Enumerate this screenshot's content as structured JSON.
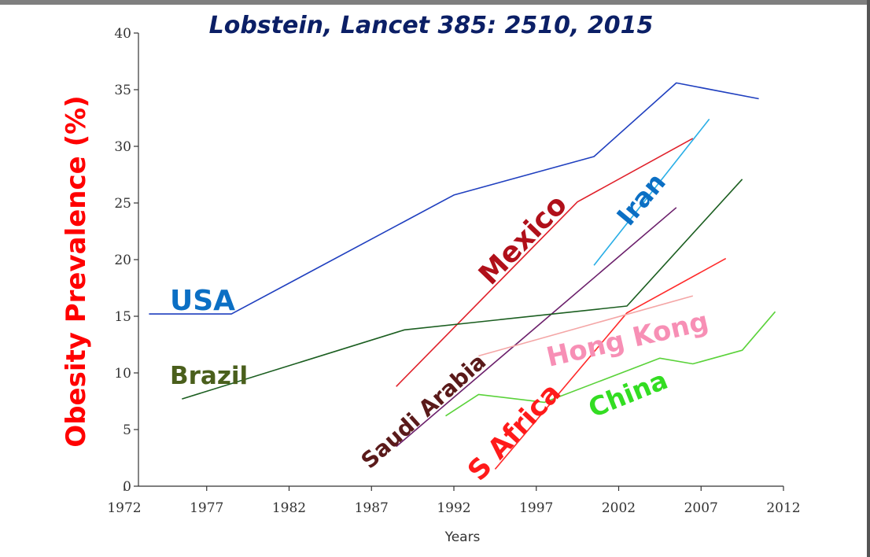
{
  "chart_data": {
    "type": "line",
    "title": "Lobstein, Lancet 385: 2510, 2015",
    "xlabel": "Years",
    "ylabel": "Obesity Prevalence (%)",
    "xlim": [
      1972,
      2012
    ],
    "ylim": [
      0,
      40
    ],
    "x_ticks": [
      1972,
      1977,
      1982,
      1987,
      1992,
      1997,
      2002,
      2007,
      2012
    ],
    "y_ticks": [
      0,
      5,
      10,
      15,
      20,
      25,
      30,
      35,
      40
    ],
    "grid": false,
    "legend": "none (inline labels)",
    "series": [
      {
        "name": "USA",
        "color": "#1f3fbf",
        "label_color": "#0b6fc4",
        "points": [
          [
            1973.5,
            15.2
          ],
          [
            1978.5,
            15.2
          ],
          [
            1992,
            25.7
          ],
          [
            2000.5,
            29.1
          ],
          [
            2005.5,
            35.6
          ],
          [
            2010.5,
            34.2
          ]
        ]
      },
      {
        "name": "Mexico",
        "color": "#e0202a",
        "label_color": "#b0101a",
        "points": [
          [
            1988.5,
            8.8
          ],
          [
            1999.5,
            25.1
          ],
          [
            2006.5,
            30.7
          ]
        ]
      },
      {
        "name": "Iran",
        "color": "#29aee6",
        "label_color": "#0b6fc4",
        "points": [
          [
            2000.5,
            19.5
          ],
          [
            2007.5,
            32.4
          ]
        ]
      },
      {
        "name": "Saudi Arabia",
        "color": "#6b1f6b",
        "label_color": "#5a1a1a",
        "points": [
          [
            1988.5,
            3.5
          ],
          [
            2005.5,
            24.6
          ]
        ]
      },
      {
        "name": "Brazil",
        "color": "#1b5e20",
        "label_color": "#4a5f1c",
        "points": [
          [
            1975.5,
            7.7
          ],
          [
            1989,
            13.8
          ],
          [
            2002.5,
            15.9
          ],
          [
            2009.5,
            27.1
          ]
        ]
      },
      {
        "name": "S Africa",
        "color": "#ff2a2a",
        "label_color": "#ff1a1a",
        "points": [
          [
            1994.5,
            1.5
          ],
          [
            2002.5,
            15.3
          ],
          [
            2008.5,
            20.1
          ]
        ]
      },
      {
        "name": "Hong Kong",
        "color": "#f4a6a6",
        "label_color": "#f78fb5",
        "points": [
          [
            1993.5,
            11.5
          ],
          [
            2006.5,
            16.8
          ]
        ]
      },
      {
        "name": "China",
        "color": "#5ad23a",
        "label_color": "#33dd22",
        "points": [
          [
            1991.5,
            6.2
          ],
          [
            1993.5,
            8.1
          ],
          [
            1997.5,
            7.4
          ],
          [
            2004.5,
            11.3
          ],
          [
            2006.5,
            10.8
          ],
          [
            2009.5,
            12.0
          ],
          [
            2011.5,
            15.4
          ]
        ]
      }
    ]
  }
}
